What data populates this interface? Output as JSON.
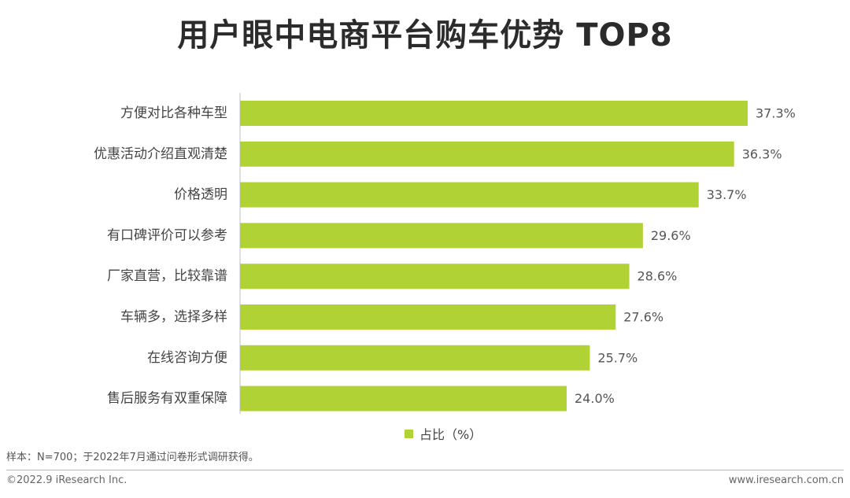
{
  "title": "用户眼中电商平台购车优势 TOP8",
  "legend": {
    "label": "占比（%）",
    "color": "#b0d235"
  },
  "footnote": "样本：N=700；于2022年7月通过问卷形式调研获得。",
  "footer": {
    "copyright": "©2022.9 iResearch Inc.",
    "website": "www.iresearch.com.cn"
  },
  "chart_data": {
    "type": "bar",
    "orientation": "horizontal",
    "categories": [
      "方便对比各种车型",
      "优惠活动介绍直观清楚",
      "价格透明",
      "有口碑评价可以参考",
      "厂家直营，比较靠谱",
      "车辆多，选择多样",
      "在线咨询方便",
      "售后服务有双重保障"
    ],
    "series": [
      {
        "name": "占比（%）",
        "values": [
          37.3,
          36.3,
          33.7,
          29.6,
          28.6,
          27.6,
          25.7,
          24.0
        ],
        "labels": [
          "37.3%",
          "36.3%",
          "33.7%",
          "29.6%",
          "28.6%",
          "27.6%",
          "25.7%",
          "24.0%"
        ]
      }
    ],
    "xlim": [
      0,
      37.3
    ],
    "grid": false,
    "legend_position": "bottom",
    "bar_color": "#b0d235",
    "axis_color": "#bfbfbf"
  }
}
